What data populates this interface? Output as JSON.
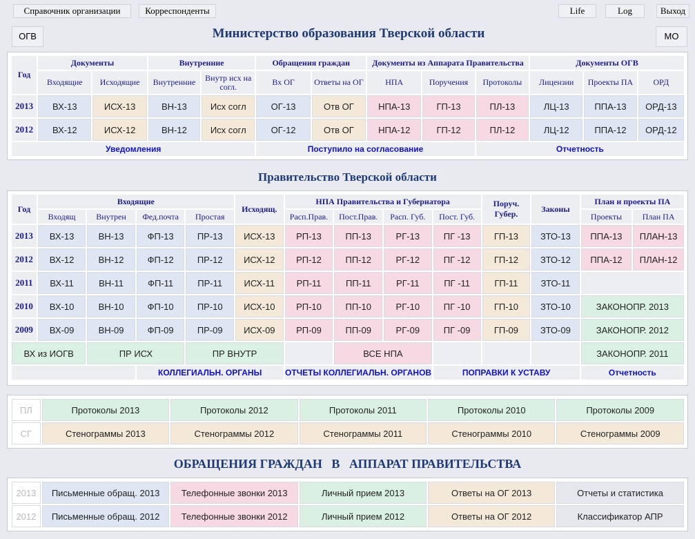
{
  "topbar": {
    "left": [
      "Справочник организации",
      "Корреспонденты"
    ],
    "right": [
      "Life",
      "Log",
      "Выход"
    ]
  },
  "ogv": {
    "left_btn": "ОГВ",
    "title": "Министерство образования Тверской области",
    "right_btn": "МО",
    "year_label": "Год",
    "groups": [
      "Документы",
      "Внутренние",
      "Обращения граждан",
      "Документы из Аппарата Правительства",
      "Документы ОГВ"
    ],
    "subs": [
      "Входящие",
      "Исходящие",
      "Внутренние",
      "Внутр исх на согл.",
      "Вх ОГ",
      "Ответы на ОГ",
      "НПА",
      "Поручения",
      "Протоколы",
      "Лицензии",
      "Проекты ПА",
      "ОРД"
    ],
    "rows": [
      {
        "year": "2013",
        "cells": [
          "ВХ-13",
          "ИСХ-13",
          "ВН-13",
          "Исх согл",
          "ОГ-13",
          "Отв ОГ",
          "НПА-13",
          "ГП-13",
          "ПЛ-13",
          "ЛЦ-13",
          "ППА-13",
          "ОРД-13"
        ]
      },
      {
        "year": "2012",
        "cells": [
          "ВХ-12",
          "ИСХ-12",
          "ВН-12",
          "Исх согл",
          "ОГ-12",
          "Отв ОГ",
          "НПА-12",
          "ГП-12",
          "ПЛ-12",
          "ЛЦ-12",
          "ППА-12",
          "ОРД-12"
        ]
      }
    ],
    "links": [
      "Уведомления",
      "Поступило на согласование",
      "Отчетность"
    ]
  },
  "gov": {
    "title": "Правительство Тверской области",
    "year_label": "Год",
    "groups": [
      "Входящие",
      "Исходящ.",
      "НПА Правительства и Губернатора",
      "Поруч. Губер.",
      "Законы",
      "План и проекты ПА"
    ],
    "subs": [
      "Входящ",
      "Внутрен",
      "Фед.почта",
      "Простая",
      "Расп.Прав.",
      "Пост.Прав.",
      "Расп. Губ.",
      "Пост. Губ.",
      "Проекты",
      "План ПА"
    ],
    "rows": [
      {
        "year": "2013",
        "cells": [
          "ВХ-13",
          "ВН-13",
          "ФП-13",
          "ПР-13",
          "ИСХ-13",
          "РП-13",
          "ПП-13",
          "РГ-13",
          "ПГ -13",
          "ГП-13",
          "ЗТО-13",
          "ППА-13",
          "ПЛАН-13"
        ]
      },
      {
        "year": "2012",
        "cells": [
          "ВХ-12",
          "ВН-12",
          "ФП-12",
          "ПР-12",
          "ИСХ-12",
          "РП-12",
          "ПП-12",
          "РГ-12",
          "ПГ -12",
          "ГП-12",
          "ЗТО-12",
          "ППА-12",
          "ПЛАН-12"
        ]
      },
      {
        "year": "2011",
        "cells": [
          "ВХ-11",
          "ВН-11",
          "ФП-11",
          "ПР-11",
          "ИСХ-11",
          "РП-11",
          "ПП-11",
          "РГ-11",
          "ПГ -11",
          "ГП-11",
          "ЗТО-11"
        ]
      },
      {
        "year": "2010",
        "cells": [
          "ВХ-10",
          "ВН-10",
          "ФП-10",
          "ПР-10",
          "ИСХ-10",
          "РП-10",
          "ПП-10",
          "РГ-10",
          "ПГ -10",
          "ГП-10",
          "ЗТО-10",
          "ЗАКОНОПР. 2013"
        ]
      },
      {
        "year": "2009",
        "cells": [
          "ВХ-09",
          "ВН-09",
          "ФП-09",
          "ПР-09",
          "ИСХ-09",
          "РП-09",
          "ПП-09",
          "РГ-09",
          "ПГ -09",
          "ГП-09",
          "ЗТО-09",
          "ЗАКОНОПР. 2012"
        ]
      }
    ],
    "extra": [
      "ВХ из ИОГВ",
      "ПР ИСХ",
      "ПР ВНУТР",
      "ВСЕ НПА",
      "ЗАКОНОПР. 2011"
    ],
    "links": [
      "КОЛЛЕГИАЛЬН. ОРГАНЫ",
      "ОТЧЕТЫ КОЛЛЕГИАЛЬН. ОРГАНОВ",
      "ПОПРАВКИ К УСТАВУ",
      "Отчетность"
    ]
  },
  "protocols": {
    "rows": [
      {
        "label": "ПЛ",
        "cells": [
          "Протоколы 2013",
          "Протоколы 2012",
          "Протоколы 2011",
          "Протоколы 2010",
          "Протоколы 2009"
        ]
      },
      {
        "label": "СГ",
        "cells": [
          "Стенограммы 2013",
          "Стенограммы 2012",
          "Стенограммы 2011",
          "Стенограммы 2010",
          "Стенограммы 2009"
        ]
      }
    ]
  },
  "appeals": {
    "title": "ОБРАЩЕНИЯ ГРАЖДАН   В   АППАРАТ ПРАВИТЕЛЬСТВА",
    "rows": [
      {
        "label": "2013",
        "cells": [
          "Письменные обращ. 2013",
          "Телефонные звонки 2013",
          "Личный прием 2013",
          "Ответы на ОГ 2013",
          "Отчеты и статистика"
        ]
      },
      {
        "label": "2012",
        "cells": [
          "Письменные обращ. 2012",
          "Телефонные звонки 2012",
          "Личный прием 2012",
          "Ответы на ОГ 2012",
          "Классификатор АПР"
        ]
      }
    ]
  }
}
